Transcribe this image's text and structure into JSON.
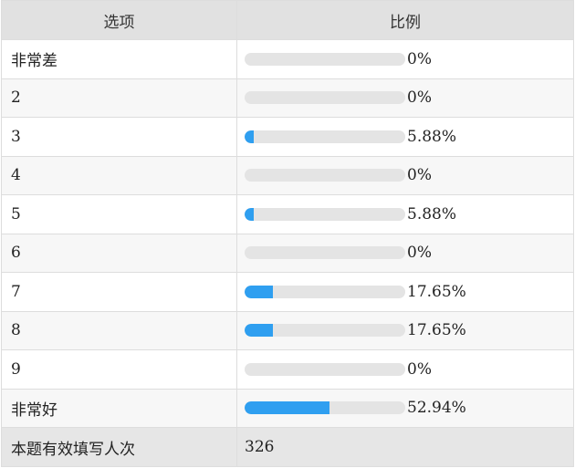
{
  "table": {
    "header": {
      "option_label": "选项",
      "ratio_label": "比例"
    },
    "rows": [
      {
        "option": "非常差",
        "percent_text": "0%",
        "percent": 0
      },
      {
        "option": "2",
        "percent_text": "0%",
        "percent": 0
      },
      {
        "option": "3",
        "percent_text": "5.88%",
        "percent": 5.88
      },
      {
        "option": "4",
        "percent_text": "0%",
        "percent": 0
      },
      {
        "option": "5",
        "percent_text": "5.88%",
        "percent": 5.88
      },
      {
        "option": "6",
        "percent_text": "0%",
        "percent": 0
      },
      {
        "option": "7",
        "percent_text": "17.65%",
        "percent": 17.65
      },
      {
        "option": "8",
        "percent_text": "17.65%",
        "percent": 17.65
      },
      {
        "option": "9",
        "percent_text": "0%",
        "percent": 0
      },
      {
        "option": "非常好",
        "percent_text": "52.94%",
        "percent": 52.94
      }
    ],
    "footer": {
      "label": "本题有效填写人次",
      "value": "326"
    }
  },
  "colors": {
    "bar_fill": "#2f9ff0",
    "bar_track": "#e4e4e4",
    "header_bg": "#e1e1e1"
  }
}
